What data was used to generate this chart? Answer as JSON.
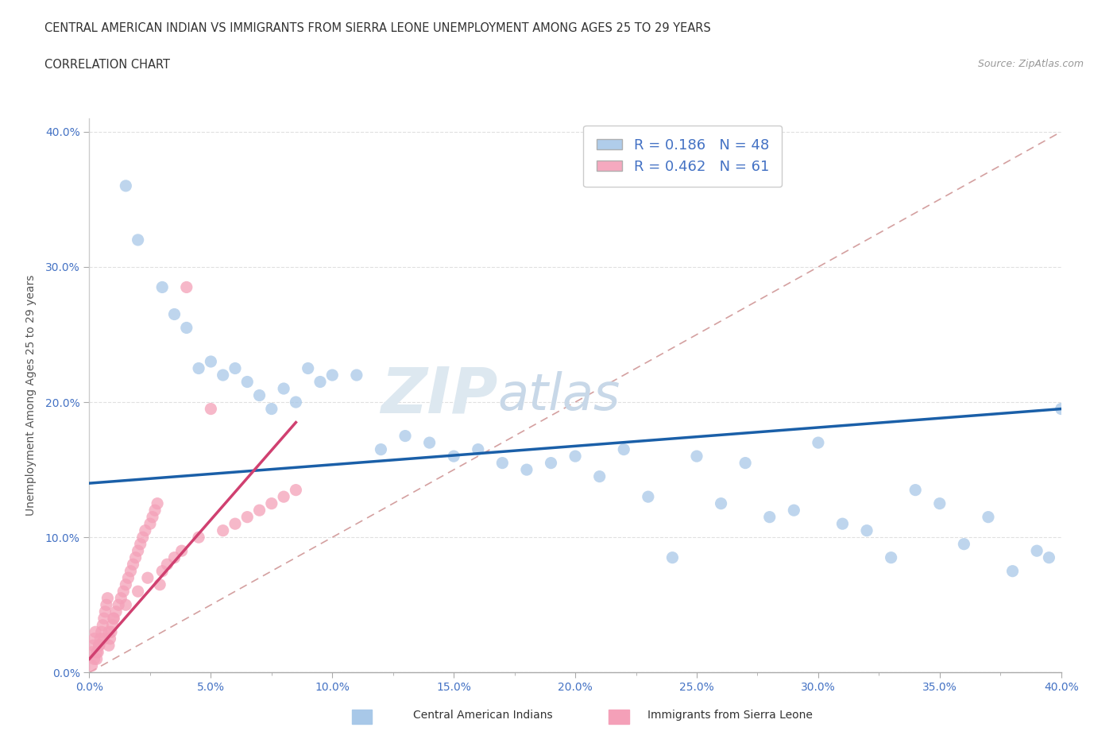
{
  "title_line1": "CENTRAL AMERICAN INDIAN VS IMMIGRANTS FROM SIERRA LEONE UNEMPLOYMENT AMONG AGES 25 TO 29 YEARS",
  "title_line2": "CORRELATION CHART",
  "source_text": "Source: ZipAtlas.com",
  "ylabel_label": "Unemployment Among Ages 25 to 29 years",
  "watermark_zip": "ZIP",
  "watermark_atlas": "atlas",
  "legend_blue_label": "Central American Indians",
  "legend_pink_label": "Immigrants from Sierra Leone",
  "R_blue": 0.186,
  "N_blue": 48,
  "R_pink": 0.462,
  "N_pink": 61,
  "blue_scatter_x": [
    1.5,
    2.0,
    3.0,
    3.5,
    4.0,
    4.5,
    5.0,
    5.5,
    6.0,
    6.5,
    7.0,
    7.5,
    8.0,
    8.5,
    9.0,
    9.5,
    10.0,
    11.0,
    12.0,
    13.0,
    14.0,
    15.0,
    16.0,
    17.0,
    18.0,
    19.0,
    20.0,
    21.0,
    22.0,
    23.0,
    24.0,
    25.0,
    26.0,
    27.0,
    28.0,
    29.0,
    30.0,
    31.0,
    32.0,
    33.0,
    34.0,
    35.0,
    36.0,
    37.0,
    38.0,
    39.0,
    39.5,
    40.0
  ],
  "blue_scatter_y": [
    36.0,
    32.0,
    28.5,
    26.5,
    25.5,
    22.5,
    23.0,
    22.0,
    22.5,
    21.5,
    20.5,
    19.5,
    21.0,
    20.0,
    22.5,
    21.5,
    22.0,
    22.0,
    16.5,
    17.5,
    17.0,
    16.0,
    16.5,
    15.5,
    15.0,
    15.5,
    16.0,
    14.5,
    16.5,
    13.0,
    8.5,
    16.0,
    12.5,
    15.5,
    11.5,
    12.0,
    17.0,
    11.0,
    10.5,
    8.5,
    13.5,
    12.5,
    9.5,
    11.5,
    7.5,
    9.0,
    8.5,
    19.5
  ],
  "pink_scatter_x": [
    0.1,
    0.15,
    0.2,
    0.25,
    0.3,
    0.35,
    0.4,
    0.45,
    0.5,
    0.55,
    0.6,
    0.65,
    0.7,
    0.75,
    0.8,
    0.85,
    0.9,
    0.95,
    1.0,
    1.1,
    1.2,
    1.3,
    1.4,
    1.5,
    1.6,
    1.7,
    1.8,
    1.9,
    2.0,
    2.1,
    2.2,
    2.3,
    2.4,
    2.5,
    2.6,
    2.7,
    2.8,
    2.9,
    3.0,
    3.2,
    3.5,
    3.8,
    4.0,
    4.5,
    5.0,
    5.5,
    6.0,
    6.5,
    7.0,
    7.5,
    8.0,
    8.5,
    2.0,
    1.5,
    1.0,
    0.8,
    0.6,
    0.4,
    0.3,
    0.2,
    0.1
  ],
  "pink_scatter_y": [
    1.5,
    2.0,
    2.5,
    3.0,
    1.0,
    1.5,
    2.0,
    2.5,
    3.0,
    3.5,
    4.0,
    4.5,
    5.0,
    5.5,
    2.0,
    2.5,
    3.0,
    3.5,
    4.0,
    4.5,
    5.0,
    5.5,
    6.0,
    6.5,
    7.0,
    7.5,
    8.0,
    8.5,
    9.0,
    9.5,
    10.0,
    10.5,
    7.0,
    11.0,
    11.5,
    12.0,
    12.5,
    6.5,
    7.5,
    8.0,
    8.5,
    9.0,
    28.5,
    10.0,
    19.5,
    10.5,
    11.0,
    11.5,
    12.0,
    12.5,
    13.0,
    13.5,
    6.0,
    5.0,
    4.0,
    3.0,
    2.5,
    2.0,
    1.5,
    1.0,
    0.5
  ],
  "blue_line_x0": 0.0,
  "blue_line_x1": 40.0,
  "blue_line_y0": 14.0,
  "blue_line_y1": 19.5,
  "pink_line_x0": 0.0,
  "pink_line_x1": 8.5,
  "pink_line_y0": 1.0,
  "pink_line_y1": 18.5,
  "diag_color": "#d4a0a0",
  "blue_color": "#a8c8e8",
  "pink_color": "#f4a0b8",
  "blue_line_color": "#1a5fa8",
  "pink_line_color": "#d04070",
  "background_color": "#ffffff",
  "grid_color": "#e0e0e0",
  "xmin": 0.0,
  "xmax": 40.0,
  "ymin": 0.0,
  "ymax": 41.0
}
